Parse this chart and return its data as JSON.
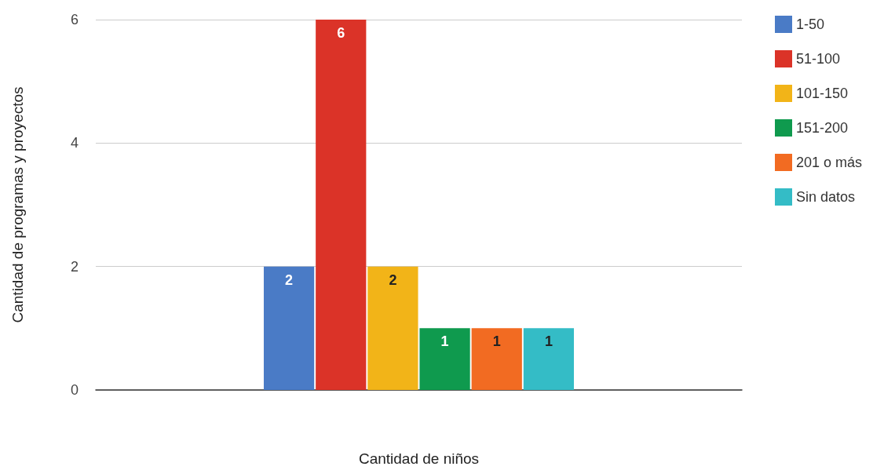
{
  "chart_data": {
    "type": "bar",
    "xlabel": "Cantidad de niños",
    "ylabel": "Cantidad de programas y proyectos",
    "categories": [
      null
    ],
    "series": [
      {
        "name": "1-50",
        "color": "#4a7bc6",
        "values": [
          2
        ]
      },
      {
        "name": "51-100",
        "color": "#db3328",
        "values": [
          6
        ]
      },
      {
        "name": "101-150",
        "color": "#f2b418",
        "values": [
          2
        ]
      },
      {
        "name": "151-200",
        "color": "#0f9a4e",
        "values": [
          1
        ]
      },
      {
        "name": "201 o más",
        "color": "#f26b22",
        "values": [
          1
        ]
      },
      {
        "name": "Sin datos",
        "color": "#34bcc6",
        "values": [
          1
        ]
      }
    ],
    "ylim": [
      0,
      6
    ],
    "yticks": [
      0,
      2,
      4,
      6
    ],
    "grid": "y",
    "legend": "top right",
    "data_labels": true
  }
}
